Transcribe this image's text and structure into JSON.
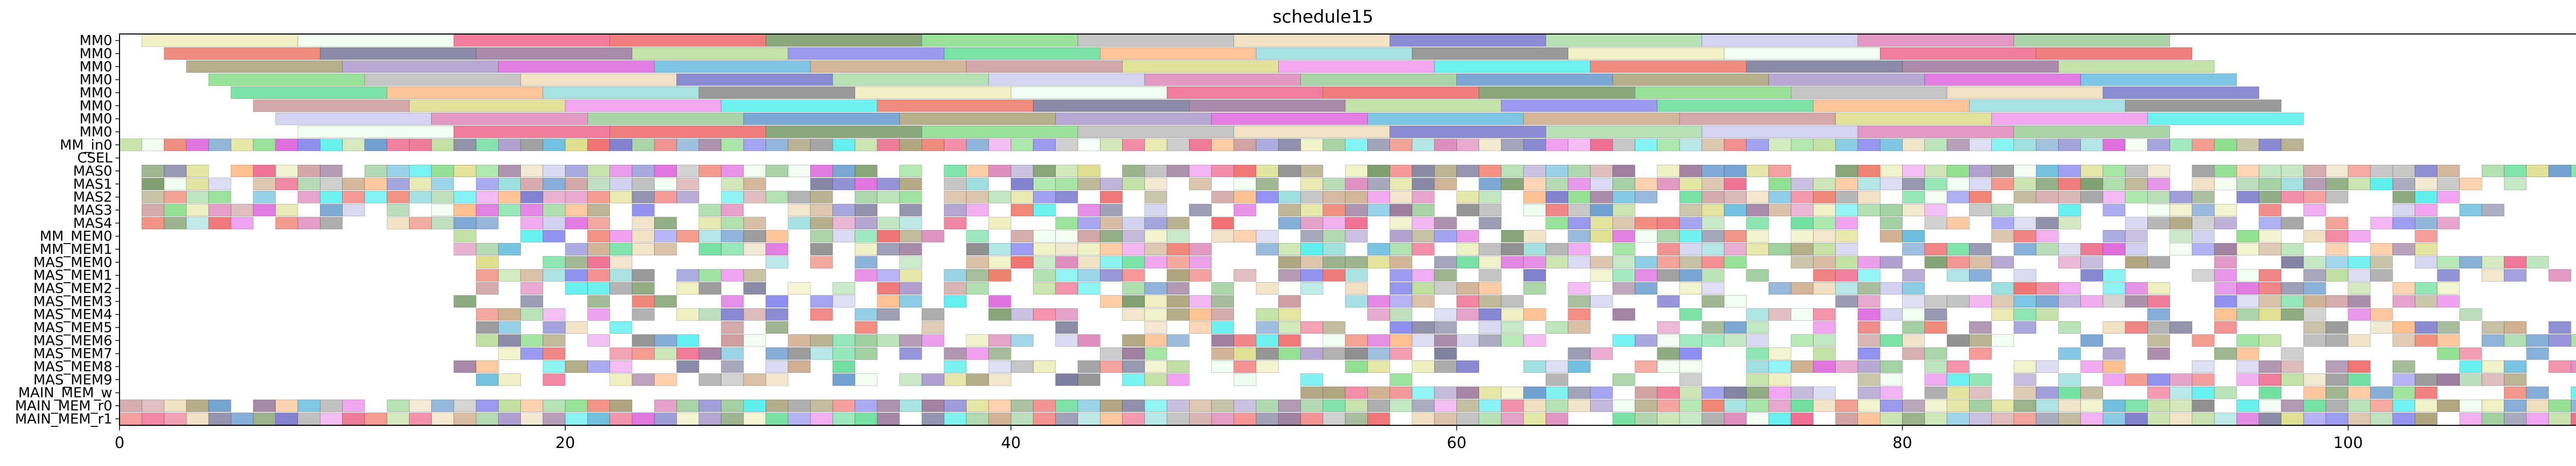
{
  "chart_data": {
    "type": "gantt",
    "title": "schedule15",
    "xlabel": "",
    "ylabel": "",
    "xlim": [
      0,
      113
    ],
    "xticks": [
      0,
      20,
      40,
      60,
      80,
      100
    ],
    "grid": false,
    "rows": [
      "MM0",
      "MM0",
      "MM0",
      "MM0",
      "MM0",
      "MM0",
      "MM0",
      "MM0",
      "MM_in0",
      "CSEL",
      "MAS0",
      "MAS1",
      "MAS2",
      "MAS3",
      "MAS4",
      "MM_MEM0",
      "MM_MEM1",
      "MAS_MEM0",
      "MAS_MEM1",
      "MAS_MEM2",
      "MAS_MEM3",
      "MAS_MEM4",
      "MAS_MEM5",
      "MAS_MEM6",
      "MAS_MEM7",
      "MAS_MEM8",
      "MAS_MEM9",
      "MAIN_MEM_w",
      "MAIN_MEM_r0",
      "MAIN_MEM_r1"
    ],
    "palette": [
      "#eeeebb",
      "#dd88bb",
      "#55eeee",
      "#eeffee",
      "#99cc99",
      "#ee7766",
      "#ee6688",
      "#6699cc",
      "#777799",
      "#ee6666",
      "#aaa077",
      "#997799",
      "#779966",
      "#aa99cc",
      "#bbdd99",
      "#88dd88",
      "#dd66dd",
      "#8888ee",
      "#bbbbbb",
      "#66bbdd",
      "#66dd99",
      "#eeddbb",
      "#ccaa88",
      "#ffbb88",
      "#7777cc",
      "#cc9999",
      "#99dddd",
      "#aaddaa",
      "#dddd88",
      "#888888",
      "#ccccee",
      "#ee99ee"
    ],
    "mm_rows": [
      {
        "row": 0,
        "bars": [
          [
            1,
            8
          ],
          [
            8,
            15
          ],
          [
            15,
            22
          ],
          [
            22,
            29
          ],
          [
            29,
            36
          ],
          [
            36,
            43
          ],
          [
            43,
            50
          ],
          [
            50,
            57
          ],
          [
            57,
            64
          ],
          [
            64,
            71
          ],
          [
            71,
            78
          ],
          [
            78,
            85
          ],
          [
            85,
            92
          ]
        ]
      },
      {
        "row": 1,
        "bars": [
          [
            2,
            9
          ],
          [
            9,
            16
          ],
          [
            16,
            23
          ],
          [
            23,
            30
          ],
          [
            30,
            37
          ],
          [
            37,
            44
          ],
          [
            44,
            51
          ],
          [
            51,
            58
          ],
          [
            58,
            65
          ],
          [
            65,
            72
          ],
          [
            72,
            79
          ],
          [
            79,
            86
          ],
          [
            86,
            93
          ]
        ]
      },
      {
        "row": 2,
        "bars": [
          [
            3,
            10
          ],
          [
            10,
            17
          ],
          [
            17,
            24
          ],
          [
            24,
            31
          ],
          [
            31,
            38
          ],
          [
            38,
            45
          ],
          [
            45,
            52
          ],
          [
            52,
            59
          ],
          [
            59,
            66
          ],
          [
            66,
            73
          ],
          [
            73,
            80
          ],
          [
            80,
            87
          ],
          [
            87,
            94
          ]
        ]
      },
      {
        "row": 3,
        "bars": [
          [
            4,
            11
          ],
          [
            11,
            18
          ],
          [
            18,
            25
          ],
          [
            25,
            32
          ],
          [
            32,
            39
          ],
          [
            39,
            46
          ],
          [
            46,
            53
          ],
          [
            53,
            60
          ],
          [
            60,
            67
          ],
          [
            67,
            74
          ],
          [
            74,
            81
          ],
          [
            81,
            88
          ],
          [
            88,
            95
          ]
        ]
      },
      {
        "row": 4,
        "bars": [
          [
            5,
            12
          ],
          [
            12,
            19
          ],
          [
            19,
            26
          ],
          [
            26,
            33
          ],
          [
            33,
            40
          ],
          [
            40,
            47
          ],
          [
            47,
            54
          ],
          [
            54,
            61
          ],
          [
            61,
            68
          ],
          [
            68,
            75
          ],
          [
            75,
            82
          ],
          [
            82,
            89
          ],
          [
            89,
            96
          ]
        ]
      },
      {
        "row": 5,
        "bars": [
          [
            6,
            13
          ],
          [
            13,
            20
          ],
          [
            20,
            27
          ],
          [
            27,
            34
          ],
          [
            34,
            41
          ],
          [
            41,
            48
          ],
          [
            48,
            55
          ],
          [
            55,
            62
          ],
          [
            62,
            69
          ],
          [
            69,
            76
          ],
          [
            76,
            83
          ],
          [
            83,
            90
          ],
          [
            90,
            97
          ]
        ]
      },
      {
        "row": 6,
        "bars": [
          [
            7,
            14
          ],
          [
            14,
            21
          ],
          [
            21,
            28
          ],
          [
            28,
            35
          ],
          [
            35,
            42
          ],
          [
            42,
            49
          ],
          [
            49,
            56
          ],
          [
            56,
            63
          ],
          [
            63,
            70
          ],
          [
            70,
            77
          ],
          [
            77,
            84
          ],
          [
            84,
            91
          ],
          [
            91,
            98
          ]
        ]
      },
      {
        "row": 7,
        "bars": [
          [
            8,
            15
          ],
          [
            15,
            22
          ],
          [
            22,
            29
          ],
          [
            29,
            36
          ],
          [
            36,
            43
          ],
          [
            43,
            50
          ],
          [
            50,
            57
          ],
          [
            57,
            64
          ],
          [
            64,
            71
          ],
          [
            71,
            78
          ],
          [
            78,
            85
          ],
          [
            85,
            92
          ]
        ]
      }
    ],
    "unit_rows": [
      {
        "row": 8,
        "ranges": [
          [
            0,
            98
          ]
        ],
        "density": 1.0
      },
      {
        "row": 9,
        "ranges": [],
        "density": 0
      },
      {
        "row": 10,
        "ranges": [
          [
            1,
            113
          ]
        ],
        "density": 0.9
      },
      {
        "row": 11,
        "ranges": [
          [
            1,
            108
          ]
        ],
        "density": 0.85
      },
      {
        "row": 12,
        "ranges": [
          [
            1,
            106
          ]
        ],
        "density": 0.8
      },
      {
        "row": 13,
        "ranges": [
          [
            1,
            107
          ]
        ],
        "density": 0.8
      },
      {
        "row": 14,
        "ranges": [
          [
            1,
            105
          ]
        ],
        "density": 0.75
      },
      {
        "row": 15,
        "ranges": [
          [
            15,
            104
          ]
        ],
        "density": 0.72
      },
      {
        "row": 16,
        "ranges": [
          [
            15,
            104
          ]
        ],
        "density": 0.72
      },
      {
        "row": 17,
        "ranges": [
          [
            16,
            109
          ]
        ],
        "density": 0.72
      },
      {
        "row": 18,
        "ranges": [
          [
            16,
            112
          ]
        ],
        "density": 0.68
      },
      {
        "row": 19,
        "ranges": [
          [
            16,
            106
          ]
        ],
        "density": 0.68
      },
      {
        "row": 20,
        "ranges": [
          [
            15,
            105
          ]
        ],
        "density": 0.65
      },
      {
        "row": 21,
        "ranges": [
          [
            16,
            107
          ]
        ],
        "density": 0.6
      },
      {
        "row": 22,
        "ranges": [
          [
            16,
            110
          ]
        ],
        "density": 0.6
      },
      {
        "row": 23,
        "ranges": [
          [
            16,
            111
          ]
        ],
        "density": 0.6
      },
      {
        "row": 24,
        "ranges": [
          [
            17,
            109
          ]
        ],
        "density": 0.6
      },
      {
        "row": 25,
        "ranges": [
          [
            15,
            111
          ]
        ],
        "density": 0.6
      },
      {
        "row": 26,
        "ranges": [
          [
            16,
            108
          ]
        ],
        "density": 0.6
      },
      {
        "row": 27,
        "ranges": [
          [
            53,
            113
          ]
        ],
        "density": 0.85
      },
      {
        "row": 28,
        "ranges": [
          [
            0,
            113
          ]
        ],
        "density": 0.95
      },
      {
        "row": 29,
        "ranges": [
          [
            0,
            113
          ]
        ],
        "density": 0.95
      }
    ]
  }
}
